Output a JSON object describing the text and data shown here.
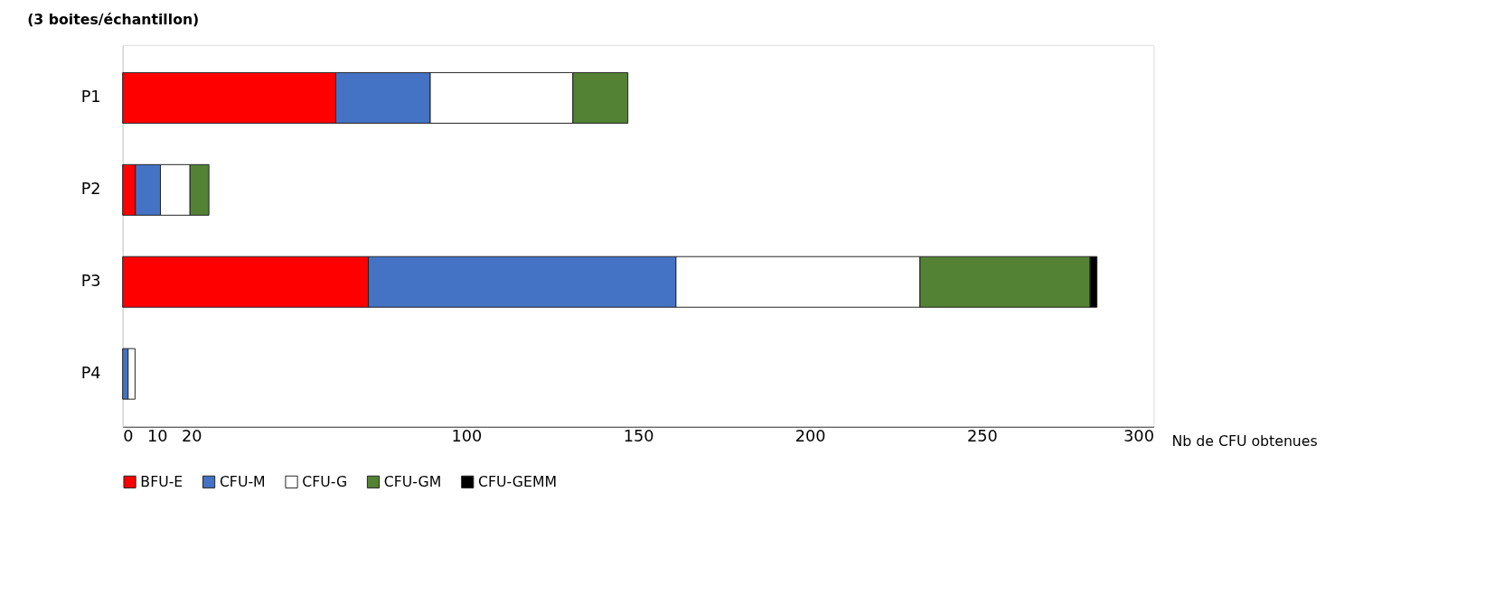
{
  "chart_data": {
    "type": "bar",
    "orientation": "horizontal",
    "stacked": true,
    "title": "(3 boites/échantillon)",
    "legend": "bottom",
    "xlabel": "Nb de CFU obtenues",
    "categories": [
      "P1",
      "P2",
      "P3",
      "P4"
    ],
    "series": [
      {
        "name": "BFU-E",
        "color": "#ff0000",
        "values": [
          62,
          3.7,
          71.5,
          null
        ]
      },
      {
        "name": "CFU-M",
        "color": "#4472c4",
        "values": [
          27.5,
          7.3,
          89.5,
          1.6
        ]
      },
      {
        "name": "CFU-G",
        "color": "#ffffff",
        "values": [
          41.5,
          8.6,
          71,
          2
        ]
      },
      {
        "name": "CFU-GM",
        "color": "#548235",
        "values": [
          16,
          5.5,
          49.5,
          null
        ]
      },
      {
        "name": "CFU-GEMM",
        "color": "#000000",
        "values": [
          null,
          null,
          2,
          null
        ]
      }
    ],
    "xlim": [
      0,
      300
    ],
    "xticks": [
      0,
      10,
      20,
      100,
      150,
      200,
      250,
      300
    ]
  }
}
